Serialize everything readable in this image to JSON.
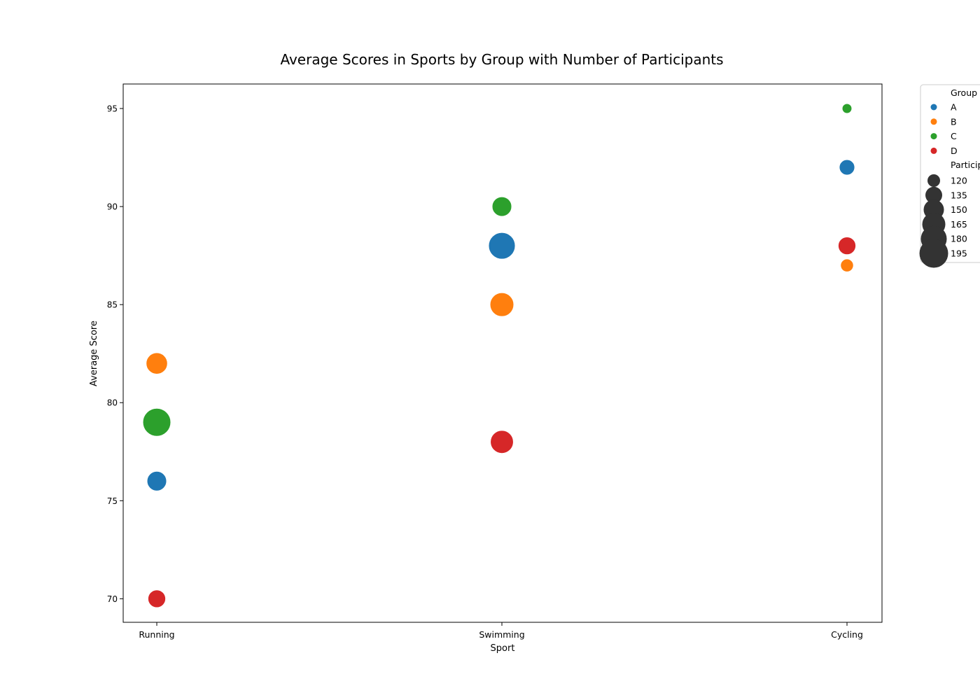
{
  "chart_data": {
    "type": "scatter",
    "title": "Average Scores in Sports by Group with Number of Participants",
    "xlabel": "Sport",
    "ylabel": "Average Score",
    "categories": [
      "Running",
      "Swimming",
      "Cycling"
    ],
    "ylim": [
      68.8,
      96.25
    ],
    "yticks": [
      70,
      75,
      80,
      85,
      90,
      95
    ],
    "grid": false,
    "legend_position": "outside-top-right",
    "group_legend_title": "Group",
    "size_legend_title": "Particip",
    "size_legend_values": [
      120,
      135,
      150,
      165,
      180,
      195
    ],
    "series": [
      {
        "name": "A",
        "color": "#1f77b4",
        "points": [
          {
            "x": "Running",
            "y": 76,
            "participants": 145
          },
          {
            "x": "Swimming",
            "y": 88,
            "participants": 190
          },
          {
            "x": "Cycling",
            "y": 92,
            "participants": 125
          }
        ]
      },
      {
        "name": "B",
        "color": "#ff7f0e",
        "points": [
          {
            "x": "Running",
            "y": 82,
            "participants": 155
          },
          {
            "x": "Swimming",
            "y": 85,
            "participants": 170
          },
          {
            "x": "Cycling",
            "y": 87,
            "participants": 115
          }
        ]
      },
      {
        "name": "C",
        "color": "#2ca02c",
        "points": [
          {
            "x": "Running",
            "y": 79,
            "participants": 200
          },
          {
            "x": "Swimming",
            "y": 90,
            "participants": 145
          },
          {
            "x": "Cycling",
            "y": 95,
            "participants": 105
          }
        ]
      },
      {
        "name": "D",
        "color": "#d62728",
        "points": [
          {
            "x": "Running",
            "y": 70,
            "participants": 135
          },
          {
            "x": "Swimming",
            "y": 78,
            "participants": 165
          },
          {
            "x": "Cycling",
            "y": 88,
            "participants": 135
          }
        ]
      }
    ]
  }
}
